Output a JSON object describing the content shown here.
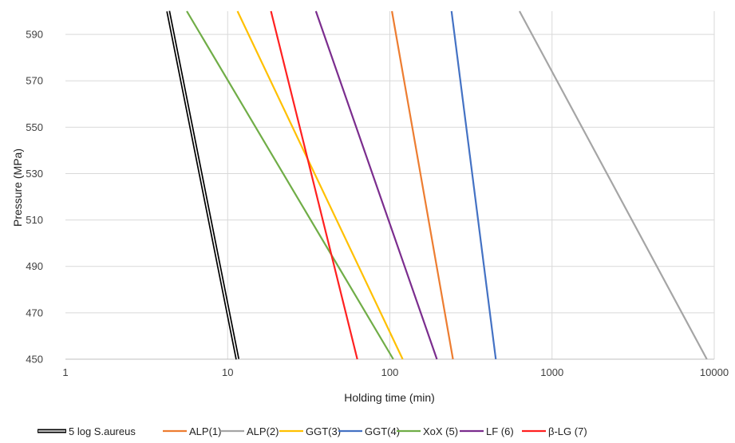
{
  "chart_data": {
    "type": "line",
    "title": "",
    "xlabel": "Holding time (min)",
    "ylabel": "Pressure (MPa)",
    "x_scale": "log",
    "xlim": [
      1,
      10000
    ],
    "ylim": [
      450,
      600
    ],
    "x_ticks": [
      "1",
      "10",
      "100",
      "1000",
      "10000"
    ],
    "x_tick_values": [
      1,
      10,
      100,
      1000,
      10000
    ],
    "y_ticks": [
      "450",
      "470",
      "490",
      "510",
      "530",
      "550",
      "570",
      "590"
    ],
    "y_tick_values": [
      450,
      470,
      490,
      510,
      530,
      550,
      570,
      590
    ],
    "grid": "vertical major gridlines and horizontal major gridlines",
    "legend_position": "bottom",
    "series": [
      {
        "name": "5 log S.aureus",
        "color": "#000000",
        "style": "double",
        "points": [
          [
            4.3,
            600
          ],
          [
            11.5,
            450
          ]
        ]
      },
      {
        "name": "ALP(1)",
        "color": "#ED7D31",
        "points": [
          [
            103,
            600
          ],
          [
            245,
            450
          ]
        ]
      },
      {
        "name": "ALP(2)",
        "color": "#A5A5A5",
        "points": [
          [
            630,
            600
          ],
          [
            9000,
            450
          ]
        ]
      },
      {
        "name": "GGT(3)",
        "color": "#FFC000",
        "points": [
          [
            11.5,
            600
          ],
          [
            120,
            450
          ]
        ]
      },
      {
        "name": "GGT(4)",
        "color": "#4472C4",
        "points": [
          [
            240,
            600
          ],
          [
            450,
            450
          ]
        ]
      },
      {
        "name": "XoX (5)",
        "color": "#70AD47",
        "points": [
          [
            5.6,
            600
          ],
          [
            105,
            450
          ]
        ]
      },
      {
        "name": "LF (6)",
        "color": "#7B2D8E",
        "points": [
          [
            35,
            600
          ],
          [
            195,
            450
          ]
        ]
      },
      {
        "name": "β-LG (7)",
        "color": "#FF2020",
        "points": [
          [
            18.5,
            600
          ],
          [
            63,
            450
          ]
        ]
      }
    ]
  }
}
